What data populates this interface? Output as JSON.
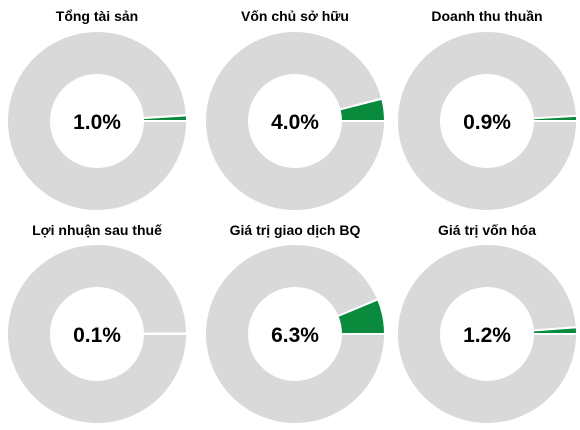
{
  "colors": {
    "highlight": "#0a8a3c",
    "remainder": "#d9d9d9",
    "divider": "#ffffff"
  },
  "chart_data": [
    {
      "type": "pie",
      "subtype": "donut",
      "title": "Tổng tài sản",
      "value_pct": 1.0,
      "label": "1.0%"
    },
    {
      "type": "pie",
      "subtype": "donut",
      "title": "Vốn chủ sở hữu",
      "value_pct": 4.0,
      "label": "4.0%"
    },
    {
      "type": "pie",
      "subtype": "donut",
      "title": "Doanh thu thuần",
      "value_pct": 0.9,
      "label": "0.9%"
    },
    {
      "type": "pie",
      "subtype": "donut",
      "title": "Lợi nhuận sau thuế",
      "value_pct": 0.1,
      "label": "0.1%"
    },
    {
      "type": "pie",
      "subtype": "donut",
      "title": "Giá trị giao dịch BQ",
      "value_pct": 6.3,
      "label": "6.3%"
    },
    {
      "type": "pie",
      "subtype": "donut",
      "title": "Giá trị vốn hóa",
      "value_pct": 1.2,
      "label": "1.2%"
    }
  ]
}
